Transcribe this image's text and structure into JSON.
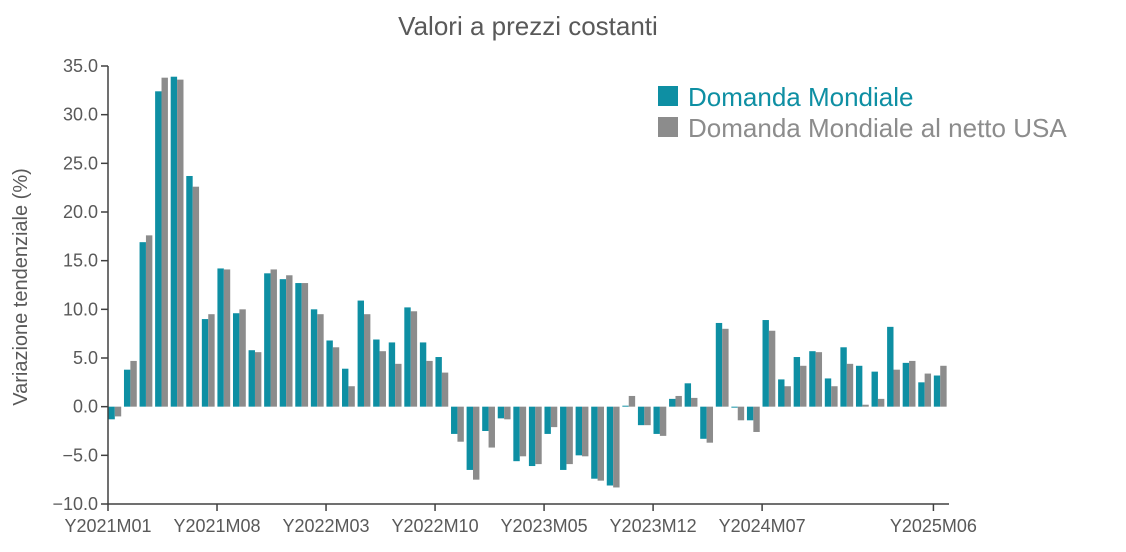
{
  "chart_data": {
    "type": "bar",
    "title": "Valori a prezzi costanti",
    "xlabel": "",
    "ylabel": "Variazione tendenziale (%)",
    "ylim": [
      -10,
      35
    ],
    "yticks": [
      "35.0",
      "30.0",
      "25.0",
      "20.0",
      "15.0",
      "10.0",
      "5.0",
      "0.0",
      "−5.0",
      "−10.0"
    ],
    "ytick_values": [
      35,
      30,
      25,
      20,
      15,
      10,
      5,
      0,
      -5,
      -10
    ],
    "xtick_labels": [
      "Y2021M01",
      "Y2021M08",
      "Y2022M03",
      "Y2022M10",
      "Y2023M05",
      "Y2023M12",
      "Y2024M07",
      "Y2025M06"
    ],
    "xtick_indices": [
      0,
      7,
      14,
      21,
      28,
      35,
      42,
      53
    ],
    "grid": false,
    "legend_position": "top-right",
    "categories": [
      "Y2021M01",
      "Y2021M02",
      "Y2021M03",
      "Y2021M04",
      "Y2021M05",
      "Y2021M06",
      "Y2021M07",
      "Y2021M08",
      "Y2021M09",
      "Y2021M10",
      "Y2021M11",
      "Y2021M12",
      "Y2022M01",
      "Y2022M02",
      "Y2022M03",
      "Y2022M04",
      "Y2022M05",
      "Y2022M06",
      "Y2022M07",
      "Y2022M08",
      "Y2022M09",
      "Y2022M10",
      "Y2022M11",
      "Y2022M12",
      "Y2023M01",
      "Y2023M02",
      "Y2023M03",
      "Y2023M04",
      "Y2023M05",
      "Y2023M06",
      "Y2023M07",
      "Y2023M08",
      "Y2023M09",
      "Y2023M10",
      "Y2023M11",
      "Y2023M12",
      "Y2024M01",
      "Y2024M02",
      "Y2024M03",
      "Y2024M04",
      "Y2024M05",
      "Y2024M06",
      "Y2024M07",
      "Y2024M08",
      "Y2024M09",
      "Y2024M10",
      "Y2024M11",
      "Y2024M12",
      "Y2025M01",
      "Y2025M02",
      "Y2025M03",
      "Y2025M04",
      "Y2025M05",
      "Y2025M06"
    ],
    "series": [
      {
        "name": "Domanda Mondiale",
        "color": "#0e8fa3",
        "values": [
          -1.3,
          3.8,
          16.9,
          32.4,
          33.9,
          23.7,
          9.0,
          14.2,
          9.6,
          5.8,
          13.7,
          13.1,
          12.7,
          10.0,
          6.8,
          3.9,
          10.9,
          6.9,
          6.6,
          10.2,
          6.6,
          5.1,
          -2.8,
          -6.5,
          -2.5,
          -1.2,
          -5.6,
          -6.1,
          -2.8,
          -6.5,
          -5.0,
          -7.4,
          -8.1,
          0.1,
          -1.9,
          -2.8,
          0.8,
          2.4,
          -3.3,
          8.6,
          -0.1,
          -1.4,
          8.9,
          2.8,
          5.1,
          5.7,
          2.9,
          6.1,
          4.2,
          3.6,
          8.2,
          4.5,
          2.5,
          3.2
        ]
      },
      {
        "name": "Domanda Mondiale al netto USA",
        "color": "#8c8c8c",
        "values": [
          -1.0,
          4.7,
          17.6,
          33.8,
          33.6,
          22.6,
          9.5,
          14.1,
          10.0,
          5.6,
          14.1,
          13.5,
          12.7,
          9.5,
          6.1,
          2.1,
          9.5,
          5.7,
          4.4,
          9.8,
          4.7,
          3.5,
          -3.6,
          -7.5,
          -4.2,
          -1.3,
          -5.1,
          -5.9,
          -2.1,
          -5.9,
          -5.1,
          -7.6,
          -8.3,
          1.1,
          -1.9,
          -3.0,
          1.1,
          0.9,
          -3.7,
          8.0,
          -1.4,
          -2.6,
          7.8,
          2.1,
          4.2,
          5.6,
          2.1,
          4.4,
          0.2,
          0.8,
          3.8,
          4.7,
          3.4,
          4.2
        ]
      }
    ]
  }
}
